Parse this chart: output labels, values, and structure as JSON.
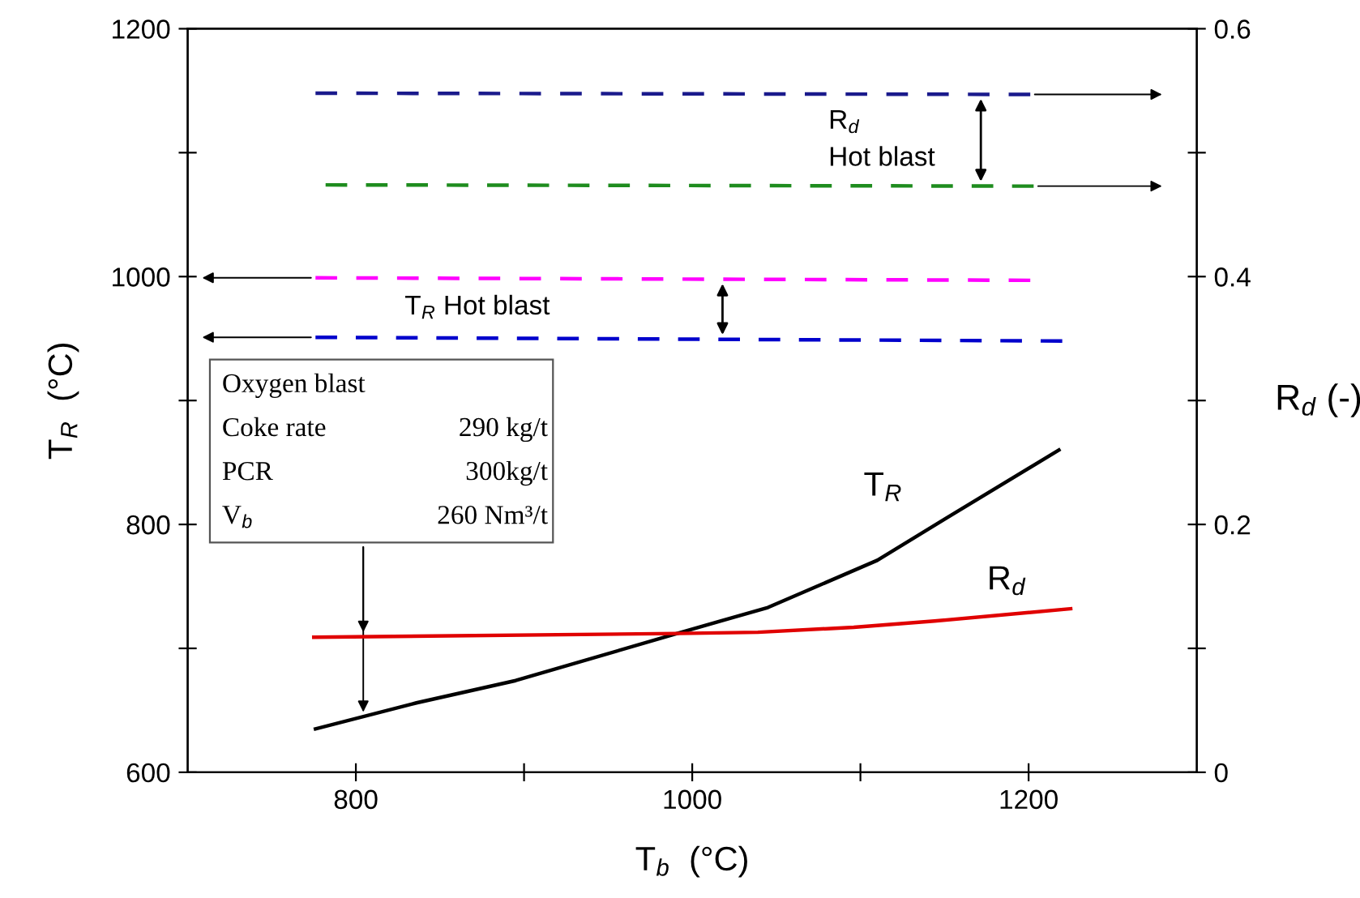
{
  "chart_data": {
    "type": "line",
    "xlabel": "T$_{b}$  (°C)",
    "ylabel": "T$_{R}$  (°C)",
    "y2label": "R$_{d}$ (-)",
    "xlim": [
      700,
      1300
    ],
    "xticks": [
      800,
      {
        "value": 900,
        "label": null
      },
      1000,
      {
        "value": 1100,
        "label": null
      },
      1200
    ],
    "ylim": [
      600,
      1200
    ],
    "yticks": [
      600,
      {
        "value": 700,
        "label": null
      },
      800,
      {
        "value": 900,
        "label": null
      },
      1000,
      {
        "value": 1100,
        "label": null
      },
      1200
    ],
    "y2lim": [
      0,
      0.6
    ],
    "y2ticks": [
      0,
      {
        "value": 0.1,
        "label": null
      },
      0.2,
      {
        "value": 0.3,
        "label": null
      },
      0.4,
      {
        "value": 0.5,
        "label": null
      },
      0.6
    ],
    "grid": false,
    "legend": false,
    "marker": "none",
    "series": [
      {
        "name": "T$_{R}$",
        "color": "#000000",
        "line_style": "solid",
        "x": [
          776,
          836,
          895,
          991,
          1045,
          1110,
          1151,
          1218
        ],
        "values": [
          635,
          656,
          674,
          712,
          733,
          771,
          805,
          860
        ]
      },
      {
        "name": "R$_{d}$",
        "color": "#e00000",
        "line_style": "solid",
        "axis": "y2",
        "x": [
          775,
          991,
          1039,
          1096,
          1144,
          1225
        ],
        "values": [
          0.109,
          0.112,
          0.113,
          0.117,
          0.122,
          0.132
        ]
      },
      {
        "color": "#1a1a8c",
        "line_style": "dashed",
        "axis": "y2",
        "x": [
          776,
          1201
        ],
        "values": [
          0.548,
          0.547
        ]
      },
      {
        "color": "#1e8c1e",
        "line_style": "dashed",
        "axis": "y2",
        "x": [
          782,
          1203
        ],
        "values": [
          0.474,
          0.473
        ]
      },
      {
        "color": "#ff00ff",
        "line_style": "dashed",
        "x": [
          776,
          1201
        ],
        "values": [
          999,
          997
        ]
      },
      {
        "color": "#0000cc",
        "line_style": "dashed",
        "x": [
          776,
          1220
        ],
        "values": [
          951,
          948
        ]
      }
    ],
    "annotations": [
      "R$_{d}$\nHot blast",
      "T$_{R}$ Hot blast",
      "Oxygen blast",
      "Coke rate  290 kg/t",
      "PCR  300kg/t",
      "V$_{b}$  260 Nm³/t"
    ]
  }
}
